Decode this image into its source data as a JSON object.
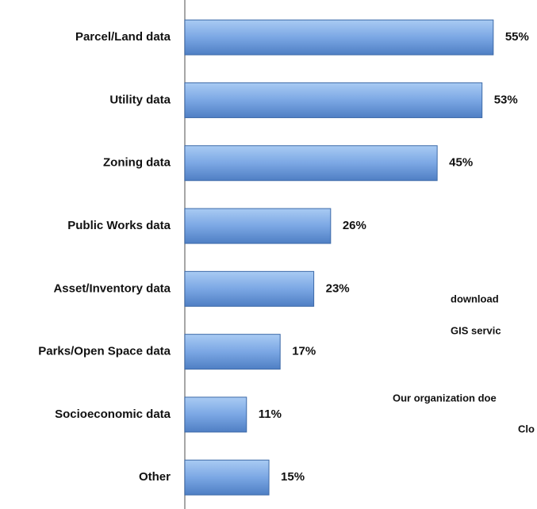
{
  "chart_data": {
    "type": "bar",
    "orientation": "horizontal",
    "categories": [
      "Parcel/Land data",
      "Utility data",
      "Zoning data",
      "Public Works data",
      "Asset/Inventory data",
      "Parks/Open Space data",
      "Socioeconomic data",
      "Other"
    ],
    "values": [
      55,
      53,
      45,
      26,
      23,
      17,
      11,
      15
    ],
    "value_labels": [
      "55%",
      "53%",
      "45%",
      "26%",
      "23%",
      "17%",
      "11%",
      "15%"
    ],
    "color": "#4f81bd",
    "annotations": [
      "download",
      "GIS servic",
      "Our organization doe",
      "Clo"
    ]
  }
}
